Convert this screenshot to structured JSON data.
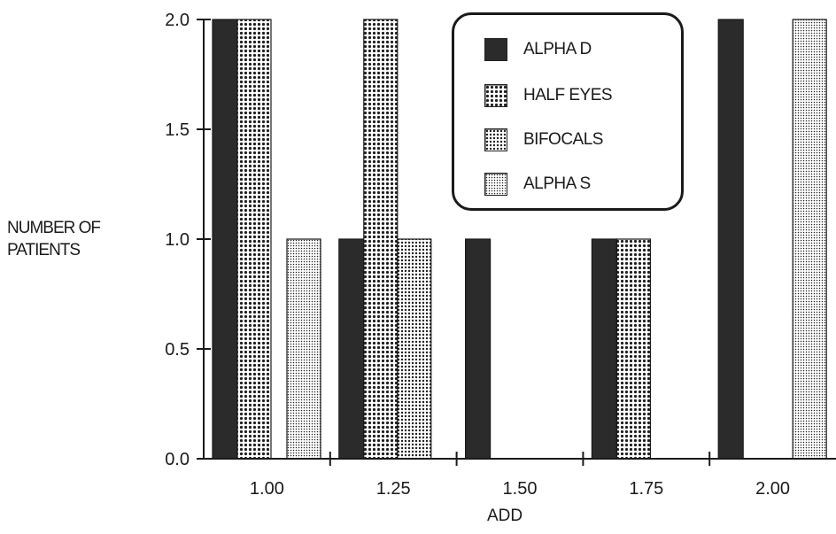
{
  "chart_data": {
    "type": "bar",
    "title": "",
    "xlabel": "ADD",
    "ylabel_lines": [
      "NUMBER OF",
      "PATIENTS"
    ],
    "categories": [
      "1.00",
      "1.25",
      "1.50",
      "1.75",
      "2.00"
    ],
    "ylim": [
      0,
      2.0
    ],
    "yticks": [
      "0.0",
      "0.5",
      "1.0",
      "1.5",
      "2.0"
    ],
    "grid": false,
    "legend_position": "top-right",
    "series": [
      {
        "name": "ALPHA D",
        "pattern": "solid-dark",
        "values": [
          2,
          1,
          1,
          1,
          2
        ]
      },
      {
        "name": "HALF EYES",
        "pattern": "coarse-dots",
        "values": [
          2,
          2,
          0,
          1,
          0
        ]
      },
      {
        "name": "BIFOCALS",
        "pattern": "medium-dots",
        "values": [
          0,
          1,
          0,
          0,
          0
        ]
      },
      {
        "name": "ALPHA S",
        "pattern": "fine-dots",
        "values": [
          1,
          0,
          0,
          0,
          2
        ]
      }
    ],
    "colors": {
      "axis": "#1a1a1a",
      "dark_fill": "#2b2b2b",
      "dot_fill": "#1f1f1f",
      "background": "#ffffff"
    }
  }
}
